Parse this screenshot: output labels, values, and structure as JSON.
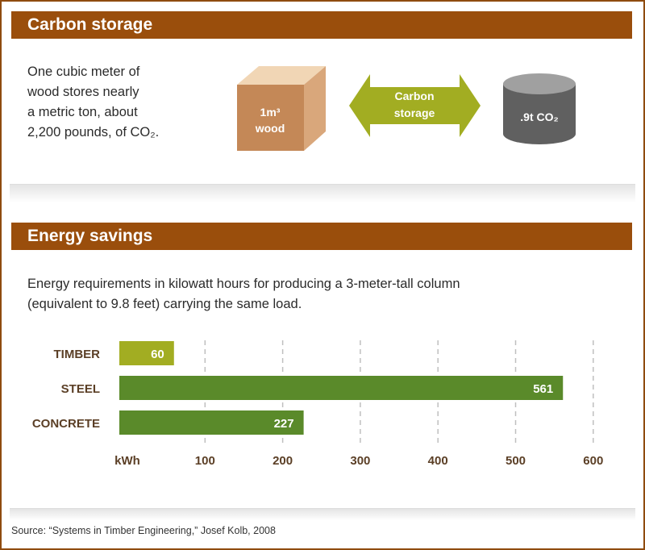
{
  "carbon": {
    "title": "Carbon storage",
    "description_lines": [
      "One cubic meter of",
      "wood stores nearly",
      "a metric ton, about",
      "2,200 pounds, of CO₂."
    ],
    "cube_label_line1": "1m³",
    "cube_label_line2": "wood",
    "arrow_label_line1": "Carbon",
    "arrow_label_line2": "storage",
    "cylinder_label": ".9t CO₂",
    "colors": {
      "cube_front": "#c48857",
      "cube_top": "#f1d6b5",
      "cube_side": "#d9a77b",
      "arrow": "#a2ad22",
      "cylinder_top": "#a0a0a0",
      "cylinder_body": "#606060"
    }
  },
  "energy": {
    "title": "Energy savings",
    "description_lines": [
      "Energy requirements in kilowatt hours for producing a 3-meter-tall column",
      "(equivalent to 9.8 feet) carrying the same load."
    ]
  },
  "chart_data": {
    "type": "bar",
    "orientation": "horizontal",
    "categories": [
      "TIMBER",
      "STEEL",
      "CONCRETE"
    ],
    "values": [
      60,
      561,
      227
    ],
    "data_labels": [
      "60",
      "561",
      "227"
    ],
    "unit_label": "kWh",
    "xlim": [
      0,
      600
    ],
    "ticks": [
      100,
      200,
      300,
      400,
      500,
      600
    ],
    "tick_labels": [
      "100",
      "200",
      "300",
      "400",
      "500",
      "600"
    ],
    "grid": "dashed vertical",
    "colors": [
      "#a2ad22",
      "#5a8a2a",
      "#5a8a2a"
    ]
  },
  "source": "Source: “Systems in Timber Engineering,” Josef Kolb, 2008"
}
